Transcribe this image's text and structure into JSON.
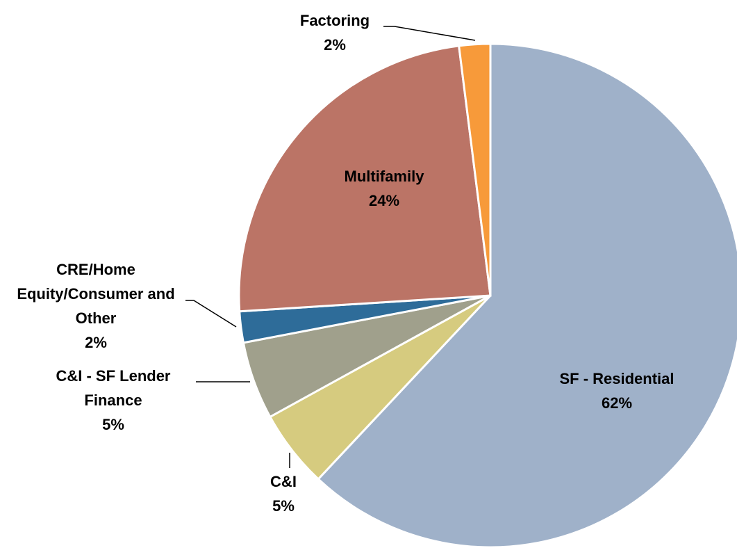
{
  "chart_data": {
    "type": "pie",
    "categories": [
      "SF - Residential",
      "C&I",
      "C&I - SF Lender Finance",
      "CRE/Home Equity/Consumer and Other",
      "Multifamily",
      "Factoring"
    ],
    "values": [
      62,
      5,
      5,
      2,
      24,
      2
    ],
    "value_labels": [
      "62%",
      "5%",
      "5%",
      "2%",
      "24%",
      "2%"
    ],
    "colors": [
      "#9fb1c9",
      "#d6cb7f",
      "#a0a08c",
      "#2e6c99",
      "#bb7466",
      "#f79a3a"
    ]
  }
}
